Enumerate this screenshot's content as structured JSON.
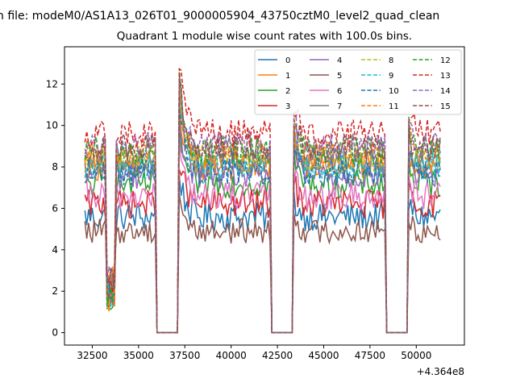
{
  "chart_data": {
    "type": "line",
    "suptitle": "n file: modeM0/AS1A13_026T01_9000005904_43750cztM0_level2_quad_clean",
    "title": "Quadrant 1 module wise count rates with 100.0s bins.",
    "xlabel": "",
    "ylabel": "",
    "x_offset_label": "+4.364e8",
    "x_range": [
      32100,
      51300
    ],
    "xlim": [
      31000,
      52600
    ],
    "ylim": [
      -0.6,
      13.8
    ],
    "x_ticks": [
      32500,
      35000,
      37500,
      40000,
      42500,
      45000,
      47500,
      50000
    ],
    "x_tick_labels": [
      "32500",
      "35000",
      "37500",
      "40000",
      "42500",
      "45000",
      "47500",
      "50000"
    ],
    "y_ticks": [
      0,
      2,
      4,
      6,
      8,
      10,
      12
    ],
    "y_tick_labels": [
      "0",
      "2",
      "4",
      "6",
      "8",
      "10",
      "12"
    ],
    "bin_seconds": 100,
    "gaps": [
      [
        35950,
        37150
      ],
      [
        42150,
        43300
      ],
      [
        48350,
        49550
      ]
    ],
    "dips": [
      [
        33300,
        33700
      ]
    ],
    "grid": false,
    "legend_placement": "top-right",
    "legend_columns": 4,
    "series": [
      {
        "name": "0",
        "color": "#1f77b4",
        "dash": false,
        "level": 5.6,
        "noise": 0.35
      },
      {
        "name": "1",
        "color": "#ff7f0e",
        "dash": false,
        "level": 8.0,
        "noise": 0.35
      },
      {
        "name": "2",
        "color": "#2ca02c",
        "dash": false,
        "level": 7.2,
        "noise": 0.35
      },
      {
        "name": "3",
        "color": "#d62728",
        "dash": false,
        "level": 6.2,
        "noise": 0.35
      },
      {
        "name": "4",
        "color": "#9467bd",
        "dash": false,
        "level": 7.6,
        "noise": 0.35
      },
      {
        "name": "5",
        "color": "#8c564b",
        "dash": false,
        "level": 4.9,
        "noise": 0.3
      },
      {
        "name": "6",
        "color": "#e377c2",
        "dash": false,
        "level": 6.6,
        "noise": 0.35
      },
      {
        "name": "7",
        "color": "#7f7f7f",
        "dash": false,
        "level": 8.2,
        "noise": 0.35
      },
      {
        "name": "8",
        "color": "#bcbd22",
        "dash": true,
        "level": 8.4,
        "noise": 0.35
      },
      {
        "name": "9",
        "color": "#17becf",
        "dash": true,
        "level": 8.1,
        "noise": 0.35
      },
      {
        "name": "10",
        "color": "#1f77b4",
        "dash": true,
        "level": 7.8,
        "noise": 0.35
      },
      {
        "name": "11",
        "color": "#ff7f0e",
        "dash": true,
        "level": 8.6,
        "noise": 0.35
      },
      {
        "name": "12",
        "color": "#2ca02c",
        "dash": true,
        "level": 8.8,
        "noise": 0.35
      },
      {
        "name": "13",
        "color": "#d62728",
        "dash": true,
        "level": 9.6,
        "noise": 0.35
      },
      {
        "name": "14",
        "color": "#9467bd",
        "dash": true,
        "level": 9.0,
        "noise": 0.35
      },
      {
        "name": "15",
        "color": "#8c564b",
        "dash": true,
        "level": 8.9,
        "noise": 0.35
      }
    ]
  }
}
